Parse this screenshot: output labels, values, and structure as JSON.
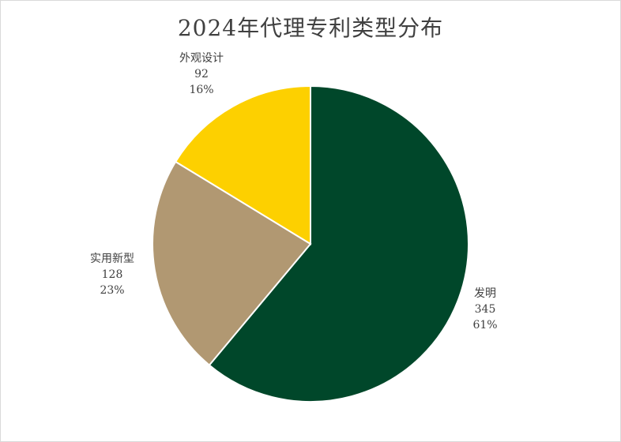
{
  "chart_data": {
    "type": "pie",
    "title": "2024年代理专利类型分布",
    "series": [
      {
        "category": "发明",
        "value": 345,
        "percent": "61%",
        "color": "#00472a"
      },
      {
        "category": "实用新型",
        "value": 128,
        "percent": "23%",
        "color": "#b19872"
      },
      {
        "category": "外观设计",
        "value": 92,
        "percent": "16%",
        "color": "#fdd000"
      }
    ],
    "start": "12 o'clock",
    "direction": "clockwise",
    "legend": "none"
  }
}
